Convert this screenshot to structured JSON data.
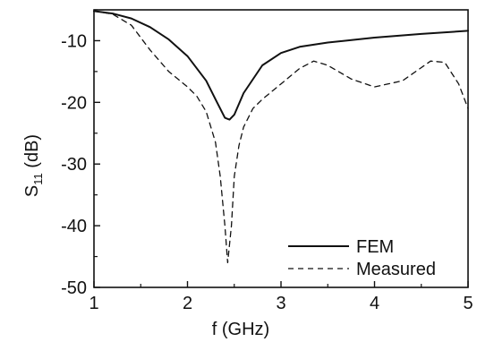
{
  "chart_data": {
    "type": "line",
    "xlabel": "f (GHz)",
    "ylabel": {
      "main": "S",
      "sub": "11",
      "unit": " (dB)"
    },
    "xlim": [
      1,
      5
    ],
    "ylim": [
      -50,
      -5
    ],
    "x_ticks": [
      1,
      2,
      3,
      4,
      5
    ],
    "y_ticks": [
      -10,
      -20,
      -30,
      -40,
      -50
    ],
    "grid": false,
    "legend_position": "bottom-right",
    "series": [
      {
        "name": "FEM",
        "style": "solid",
        "x": [
          1.0,
          1.2,
          1.4,
          1.6,
          1.8,
          2.0,
          2.2,
          2.3,
          2.4,
          2.45,
          2.5,
          2.6,
          2.8,
          3.0,
          3.2,
          3.5,
          4.0,
          4.5,
          5.0
        ],
        "y": [
          -5.2,
          -5.6,
          -6.4,
          -7.8,
          -9.8,
          -12.5,
          -16.5,
          -19.5,
          -22.5,
          -22.8,
          -22.0,
          -18.5,
          -14.0,
          -12.0,
          -11.0,
          -10.3,
          -9.5,
          -8.9,
          -8.4
        ]
      },
      {
        "name": "Measured",
        "style": "dashed",
        "x": [
          1.0,
          1.2,
          1.4,
          1.6,
          1.8,
          2.0,
          2.1,
          2.2,
          2.3,
          2.35,
          2.4,
          2.43,
          2.47,
          2.5,
          2.55,
          2.6,
          2.7,
          2.8,
          3.0,
          3.2,
          3.35,
          3.5,
          3.75,
          4.0,
          4.3,
          4.6,
          4.75,
          4.9,
          5.0
        ],
        "y": [
          -5.2,
          -5.7,
          -7.5,
          -11.5,
          -15.0,
          -17.5,
          -19.0,
          -21.5,
          -26.5,
          -32.0,
          -40.0,
          -46.0,
          -40.0,
          -32.0,
          -27.0,
          -24.0,
          -21.0,
          -19.5,
          -17.0,
          -14.5,
          -13.3,
          -14.0,
          -16.2,
          -17.5,
          -16.5,
          -13.3,
          -13.5,
          -17.0,
          -21.0
        ]
      }
    ]
  }
}
